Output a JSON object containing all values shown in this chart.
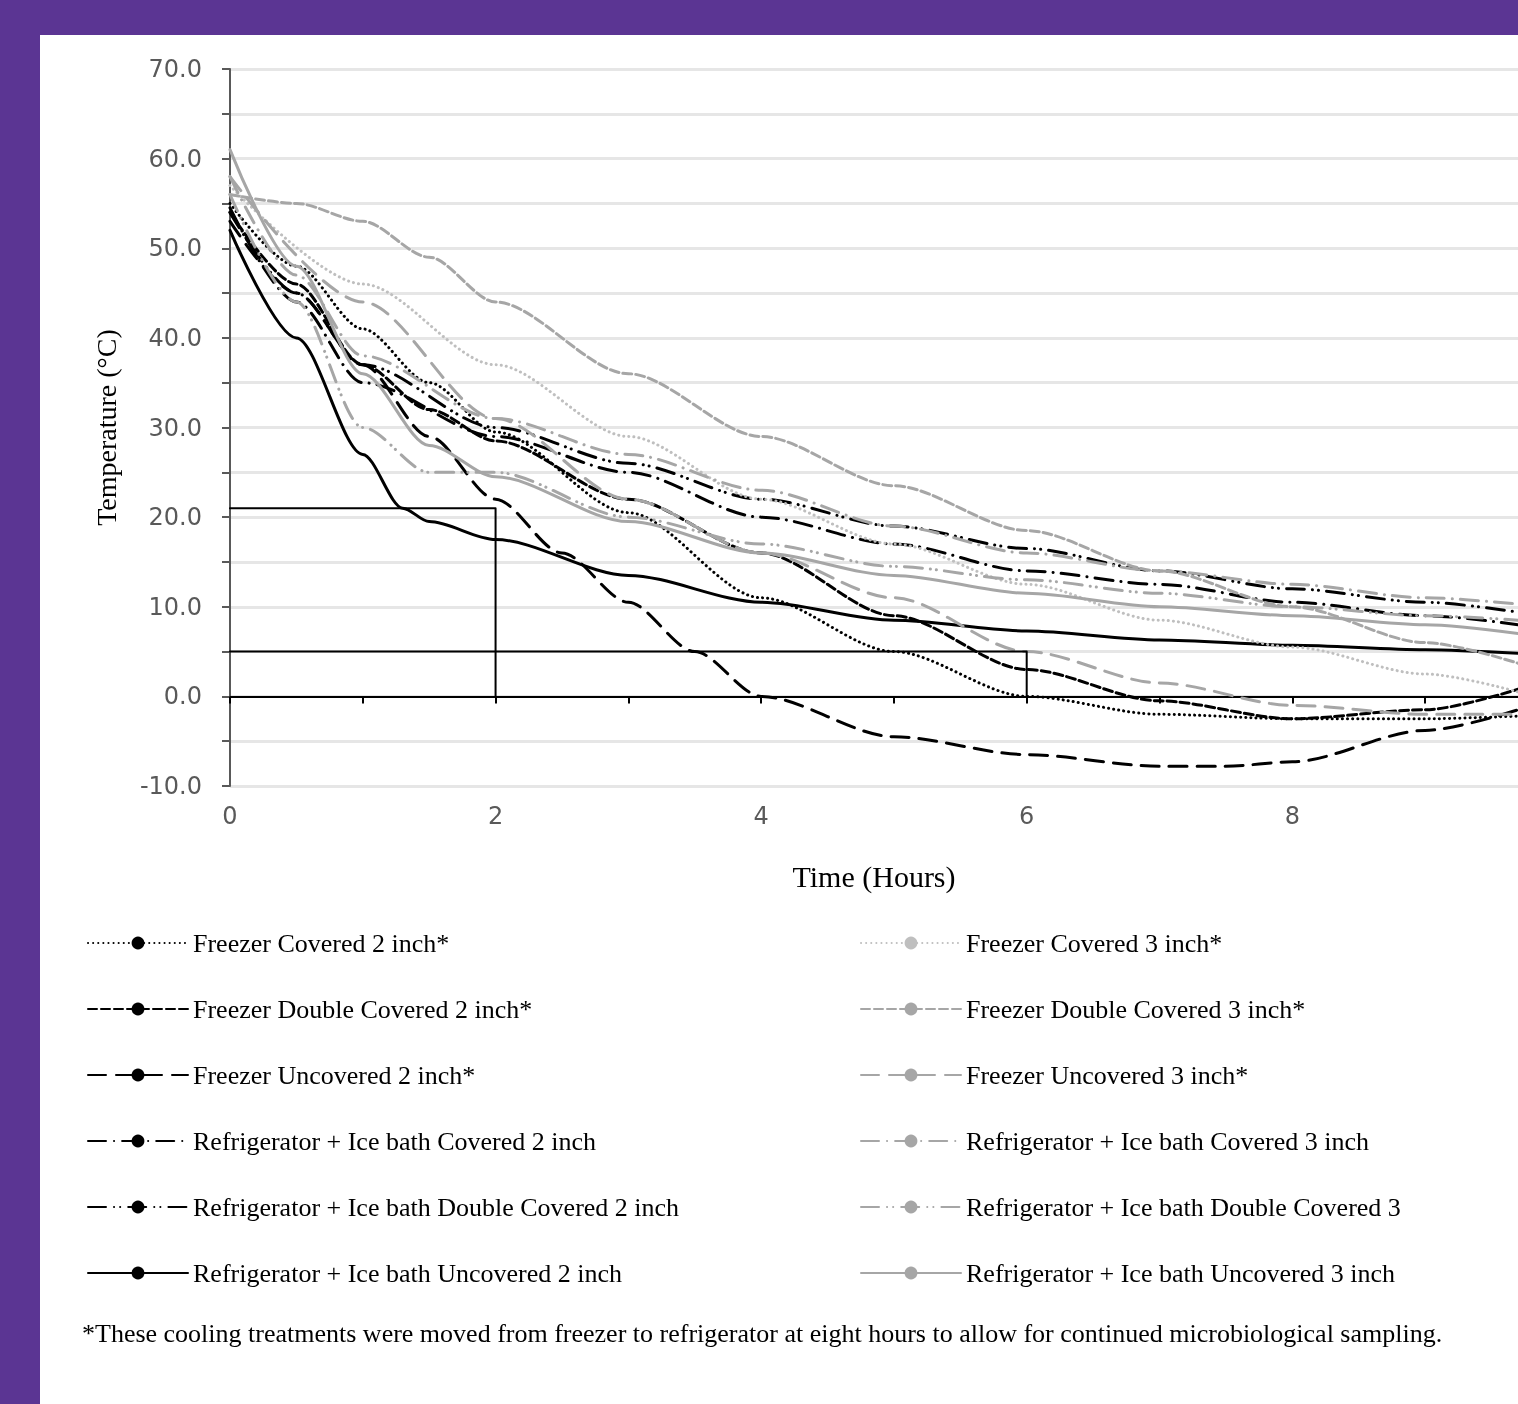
{
  "chart_data": {
    "type": "line",
    "xlabel": "Time (Hours)",
    "ylabel": "Temperature (°C)",
    "xlim": [
      0,
      9.7
    ],
    "xticks": [
      0,
      {
        "value": 1,
        "label": null
      },
      2,
      {
        "value": 3,
        "label": null
      },
      4,
      {
        "value": 5,
        "label": null
      },
      6,
      {
        "value": 7,
        "label": null
      },
      8,
      {
        "value": 9,
        "label": null
      }
    ],
    "ylim": [
      -10,
      70
    ],
    "yticks": [
      {
        "value": -10,
        "label": "-10.0"
      },
      {
        "value": -5,
        "label": null
      },
      {
        "value": 0,
        "label": "0.0"
      },
      {
        "value": 5,
        "label": null
      },
      {
        "value": 10,
        "label": "10.0"
      },
      {
        "value": 15,
        "label": null
      },
      {
        "value": 20,
        "label": "20.0"
      },
      {
        "value": 25,
        "label": null
      },
      {
        "value": 30,
        "label": "30.0"
      },
      {
        "value": 35,
        "label": null
      },
      {
        "value": 40,
        "label": "40.0"
      },
      {
        "value": 45,
        "label": null
      },
      {
        "value": 50,
        "label": "50.0"
      },
      {
        "value": 55,
        "label": null
      },
      {
        "value": 60,
        "label": "60.0"
      },
      {
        "value": 65,
        "label": null
      },
      {
        "value": 70,
        "label": "70.0"
      }
    ],
    "grid": "y",
    "legend": "bottom",
    "marker": "none",
    "series": [
      {
        "name": "Freezer Covered 2 inch*",
        "color": "#000000",
        "line_style": "dotted",
        "x": [
          0,
          0.5,
          1,
          1.5,
          2,
          3,
          4,
          5,
          6,
          7,
          8,
          9,
          9.7
        ],
        "values": [
          55,
          48,
          41,
          35,
          29.5,
          20.5,
          11,
          5,
          0,
          -2,
          -2.5,
          -2.5,
          -2.2
        ]
      },
      {
        "name": "Freezer Double Covered 2 inch*",
        "color": "#000000",
        "line_style": "dashed",
        "x": [
          0,
          0.5,
          1,
          1.5,
          2,
          3,
          4,
          5,
          6,
          7,
          8,
          9,
          9.7
        ],
        "values": [
          54,
          46,
          37,
          32,
          28.5,
          22,
          16,
          9,
          3,
          -0.5,
          -2.5,
          -1.5,
          0.8
        ]
      },
      {
        "name": "Freezer Uncovered 2 inch*",
        "color": "#000000",
        "line_style": "long_dashed",
        "x": [
          0,
          0.5,
          1,
          1.5,
          2,
          2.5,
          3,
          3.5,
          4,
          5,
          6,
          7,
          7.5,
          8,
          9,
          9.7
        ],
        "values": [
          53,
          45,
          37,
          29,
          22,
          16,
          10.5,
          5,
          0,
          -4.5,
          -6.5,
          -7.8,
          -7.8,
          -7.3,
          -3.8,
          -1.5
        ]
      },
      {
        "name": "Refrigerator + Ice bath Covered 2 inch",
        "color": "#000000",
        "line_style": "dash_dot",
        "x": [
          0,
          0.5,
          1,
          2,
          3,
          4,
          5,
          6,
          7,
          8,
          9,
          9.7
        ],
        "values": [
          54.5,
          44,
          35,
          29,
          25,
          20,
          17,
          14,
          12.5,
          10.5,
          9,
          8
        ]
      },
      {
        "name": "Refrigerator + Ice bath Double Covered 2 inch",
        "color": "#000000",
        "line_style": "dash_dot_dot",
        "x": [
          0,
          0.5,
          1,
          2,
          3,
          4,
          5,
          6,
          7,
          8,
          9,
          9.7
        ],
        "values": [
          54,
          45,
          37,
          30,
          26,
          22,
          19,
          16.5,
          14,
          12,
          10.5,
          9.4
        ]
      },
      {
        "name": "Refrigerator + Ice bath Uncovered 2 inch",
        "color": "#000000",
        "line_style": "solid",
        "x": [
          0,
          0.5,
          1,
          1.3,
          1.5,
          2,
          3,
          4,
          5,
          6,
          7,
          8,
          9,
          9.7
        ],
        "values": [
          52,
          40,
          27,
          21,
          19.5,
          17.5,
          13.5,
          10.5,
          8.5,
          7.3,
          6.3,
          5.7,
          5.2,
          4.8
        ]
      },
      {
        "name": "Freezer Covered 3 inch*",
        "color": "#bfbfbf",
        "line_style": "dotted",
        "x": [
          0,
          1,
          2,
          3,
          4,
          5,
          6,
          7,
          8,
          9,
          9.7
        ],
        "values": [
          57,
          46,
          37,
          29,
          22,
          17,
          12.5,
          8.5,
          5.5,
          2.5,
          0.5
        ]
      },
      {
        "name": "Freezer Double Covered 3 inch*",
        "color": "#a6a6a6",
        "line_style": "dashed",
        "x": [
          0,
          0.5,
          1,
          1.5,
          2,
          3,
          4,
          5,
          6,
          7,
          8,
          9,
          9.7
        ],
        "values": [
          56,
          55,
          53,
          49,
          44,
          36,
          29,
          23.5,
          18.5,
          14,
          10,
          6,
          3.7
        ]
      },
      {
        "name": "Freezer Uncovered 3 inch*",
        "color": "#a6a6a6",
        "line_style": "long_dashed",
        "x": [
          0,
          1,
          2,
          3,
          4,
          5,
          6,
          7,
          8,
          9,
          9.7
        ],
        "values": [
          58,
          44,
          31,
          22,
          16,
          11,
          5,
          1.5,
          -1,
          -2,
          -2
        ]
      },
      {
        "name": "Refrigerator + Ice bath Covered 3 inch",
        "color": "#a6a6a6",
        "line_style": "dash_dot",
        "x": [
          0,
          0.5,
          1,
          2,
          3,
          4,
          5,
          6,
          7,
          8,
          9,
          9.7
        ],
        "values": [
          58,
          47,
          38,
          31,
          27,
          23,
          19,
          16,
          14,
          12.5,
          11,
          10.3
        ]
      },
      {
        "name": "Refrigerator + Ice bath Double Covered 3",
        "color": "#a6a6a6",
        "line_style": "dash_dot_dot",
        "x": [
          0,
          0.5,
          1,
          1.5,
          2,
          3,
          4,
          5,
          6,
          7,
          8,
          9,
          9.7
        ],
        "values": [
          56,
          44,
          30,
          25,
          25,
          20,
          17,
          14.5,
          13,
          11.5,
          10,
          9,
          8.5
        ]
      },
      {
        "name": "Refrigerator + Ice bath Uncovered 3 inch",
        "color": "#a6a6a6",
        "line_style": "solid",
        "x": [
          0,
          0.5,
          1,
          1.5,
          2,
          3,
          4,
          5,
          6,
          7,
          8,
          9,
          9.7
        ],
        "values": [
          61,
          48,
          36,
          28,
          24.5,
          19.5,
          16,
          13.5,
          11.5,
          10,
          9,
          8,
          7
        ]
      },
      {
        "color": "#000000",
        "line_style": "solid",
        "x": [
          0,
          2,
          2
        ],
        "values": [
          21,
          21,
          0
        ]
      },
      {
        "color": "#000000",
        "line_style": "solid",
        "x": [
          0,
          6,
          6
        ],
        "values": [
          5,
          5,
          0
        ]
      }
    ],
    "annotations": [
      "*These cooling treatments were moved from freezer to refrigerator at eight hours to allow for continued microbiological sampling."
    ]
  }
}
